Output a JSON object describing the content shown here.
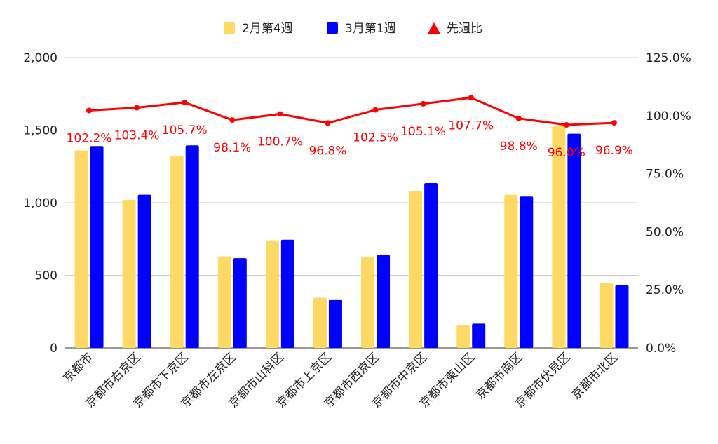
{
  "chart_data": {
    "type": "bar",
    "categories": [
      "京都市",
      "京都市右京区",
      "京都市下京区",
      "京都市左京区",
      "京都市山科区",
      "京都市上京区",
      "京都市西京区",
      "京都市中京区",
      "京都市東山区",
      "京都市南区",
      "京都市伏見区",
      "京都市北区"
    ],
    "series": [
      {
        "name": "2月第4週",
        "type": "bar",
        "axis": "left",
        "color": "#ffd966",
        "values": [
          1360,
          1020,
          1320,
          630,
          740,
          345,
          625,
          1080,
          155,
          1055,
          1530,
          445
        ]
      },
      {
        "name": "3月第1週",
        "type": "bar",
        "axis": "left",
        "color": "#0000ff",
        "values": [
          1390,
          1055,
          1395,
          618,
          745,
          334,
          640,
          1135,
          167,
          1042,
          1475,
          431
        ]
      },
      {
        "name": "先週比",
        "type": "line",
        "axis": "right",
        "color": "#ff0000",
        "values": [
          102.2,
          103.4,
          105.7,
          98.1,
          100.7,
          96.8,
          102.5,
          105.1,
          107.7,
          98.8,
          96.0,
          96.9
        ],
        "labels": [
          "102.2%",
          "103.4%",
          "105.7%",
          "98.1%",
          "100.7%",
          "96.8%",
          "102.5%",
          "105.1%",
          "107.7%",
          "98.8%",
          "96.0%",
          "96.9%"
        ]
      }
    ],
    "ylim_left": [
      0,
      2000
    ],
    "yticks_left": [
      0,
      500,
      1000,
      1500,
      2000
    ],
    "ytick_labels_left": [
      "0",
      "500",
      "1,000",
      "1,500",
      "2,000"
    ],
    "ylim_right": [
      0,
      125
    ],
    "yticks_right": [
      0,
      25,
      50,
      75,
      100,
      125
    ],
    "ytick_labels_right": [
      "0.0%",
      "25.0%",
      "50.0%",
      "75.0%",
      "100.0%",
      "125.0%"
    ],
    "grid": true,
    "legend_position": "top-center",
    "title": "",
    "xlabel": "",
    "ylabel": ""
  }
}
